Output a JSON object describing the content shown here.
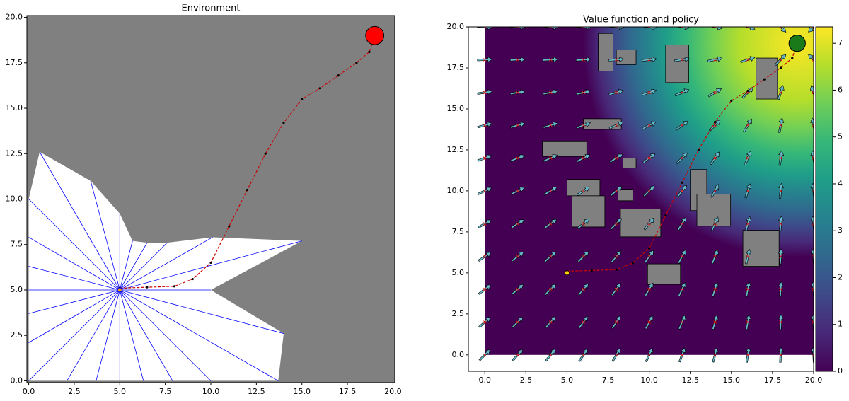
{
  "chart_data": [
    {
      "type": "trajectory",
      "title": "Environment",
      "xlim": [
        -0.1,
        20.1
      ],
      "ylim": [
        -0.1,
        20.1
      ],
      "xticks": [
        {
          "value": 0,
          "label": "0.0"
        },
        {
          "value": 2.5,
          "label": "2.5"
        },
        {
          "value": 5,
          "label": "5.0"
        },
        {
          "value": 7.5,
          "label": "7.5"
        },
        {
          "value": 10,
          "label": "10.0"
        },
        {
          "value": 12.5,
          "label": "12.5"
        },
        {
          "value": 15,
          "label": "15.0"
        },
        {
          "value": 17.5,
          "label": "17.5"
        },
        {
          "value": 20,
          "label": "20.0"
        }
      ],
      "yticks": [
        {
          "value": 0,
          "label": "0.0"
        },
        {
          "value": 2.5,
          "label": "2.5"
        },
        {
          "value": 5,
          "label": "5.0"
        },
        {
          "value": 7.5,
          "label": "7.5"
        },
        {
          "value": 10,
          "label": "10.0"
        },
        {
          "value": 12.5,
          "label": "12.5"
        },
        {
          "value": 15,
          "label": "15.0"
        },
        {
          "value": 17.5,
          "label": "17.5"
        },
        {
          "value": 20,
          "label": "20.0"
        }
      ],
      "background": "#808080",
      "free_color": "#ffffff",
      "ray_color": "#0000ff",
      "origin": {
        "x": 5,
        "y": 5,
        "color": "#ffa500"
      },
      "rays": {
        "x": [
          10,
          15,
          10.1,
          7.6,
          6.5,
          5.7,
          5,
          3.4,
          0.6,
          0,
          0,
          0,
          0,
          0,
          0,
          0,
          2.1,
          3.7,
          5,
          6.3,
          7.9,
          10,
          13.7,
          14
        ],
        "y": [
          5,
          7.7,
          7.9,
          7.6,
          7.6,
          7.7,
          9.2,
          11,
          12.6,
          10,
          7.9,
          6.3,
          5,
          3.7,
          2.1,
          0,
          0,
          0,
          0,
          0,
          0,
          0,
          0,
          2.6
        ]
      },
      "path": {
        "color": "#cc0000",
        "x": [
          5,
          6.5,
          8,
          9,
          10,
          11,
          12,
          13,
          14,
          15,
          16,
          17,
          18,
          18.7,
          19
        ],
        "y": [
          5.1,
          5.15,
          5.2,
          5.6,
          6.5,
          8.5,
          10.5,
          12.5,
          14.2,
          15.5,
          16.1,
          16.8,
          17.5,
          18.1,
          19
        ]
      },
      "goal": {
        "x": 19,
        "y": 19,
        "r": 0.5,
        "color": "#ff0000"
      }
    },
    {
      "type": "policy",
      "title": "Value function and policy",
      "xlim": [
        -1,
        20
      ],
      "ylim": [
        -1,
        20
      ],
      "xticks": [
        {
          "value": 0,
          "label": "0.0"
        },
        {
          "value": 2.5,
          "label": "2.5"
        },
        {
          "value": 5,
          "label": "5.0"
        },
        {
          "value": 7.5,
          "label": "7.5"
        },
        {
          "value": 10,
          "label": "10.0"
        },
        {
          "value": 12.5,
          "label": "12.5"
        },
        {
          "value": 15,
          "label": "15.0"
        },
        {
          "value": 17.5,
          "label": "17.5"
        },
        {
          "value": 20,
          "label": "20.0"
        }
      ],
      "yticks": [
        {
          "value": 0,
          "label": "0.0"
        },
        {
          "value": 2.5,
          "label": "2.5"
        },
        {
          "value": 5,
          "label": "5.0"
        },
        {
          "value": 7.5,
          "label": "7.5"
        },
        {
          "value": 10,
          "label": "10.0"
        },
        {
          "value": 12.5,
          "label": "12.5"
        },
        {
          "value": 15,
          "label": "15.0"
        },
        {
          "value": 17.5,
          "label": "17.5"
        },
        {
          "value": 20,
          "label": "20.0"
        }
      ],
      "clim": [
        0,
        7.35
      ],
      "cticks": [
        0,
        1,
        2,
        3,
        4,
        5,
        6,
        7
      ],
      "colors": [
        "#440154",
        "#482878",
        "#3e4989",
        "#31688e",
        "#26828e",
        "#1f9e89",
        "#35b779",
        "#6ece58",
        "#b5de2b",
        "#fde725"
      ],
      "obstacle_color": "#808080",
      "arrow_color": "#66b8c8",
      "obstacles": {
        "x": [
          6.9,
          8.0,
          11.0,
          16.5,
          6.0,
          3.5,
          8.4,
          12.5,
          5.0,
          5.3,
          8.1,
          8.25,
          12.9,
          15.7,
          9.9
        ],
        "y": [
          17.3,
          17.7,
          16.6,
          15.6,
          13.75,
          12.1,
          11.4,
          8.8,
          9.7,
          7.8,
          9.4,
          7.2,
          7.85,
          5.4,
          4.3
        ],
        "w": [
          0.9,
          1.2,
          1.4,
          1.3,
          2.3,
          2.7,
          0.8,
          1.0,
          2.0,
          2.0,
          0.9,
          2.45,
          2.05,
          2.2,
          2.0
        ],
        "h": [
          2.3,
          0.9,
          2.3,
          2.5,
          0.65,
          0.9,
          0.6,
          2.5,
          1.0,
          1.9,
          0.7,
          1.7,
          1.95,
          2.2,
          1.25
        ]
      },
      "policy": {
        "x": [
          0,
          2,
          4,
          6,
          8,
          10,
          12,
          14,
          16,
          18,
          20
        ],
        "y": [
          0,
          2,
          4,
          6,
          8,
          10,
          12,
          14,
          16,
          18,
          20
        ],
        "angles": [
          [
            45,
            48,
            52,
            56,
            60,
            65,
            70,
            75,
            81,
            87,
            93
          ],
          [
            42,
            45,
            49,
            53,
            57,
            62,
            68,
            74,
            80,
            87,
            93
          ],
          [
            38,
            41,
            45,
            49,
            54,
            59,
            65,
            72,
            79,
            86,
            94
          ],
          [
            34,
            37,
            41,
            45,
            50,
            55,
            62,
            69,
            77,
            86,
            94
          ],
          [
            30,
            33,
            36,
            40,
            45,
            51,
            58,
            66,
            75,
            85,
            96
          ],
          [
            25,
            27,
            31,
            34,
            39,
            45,
            52,
            61,
            72,
            84,
            96
          ],
          [
            20,
            22,
            24,
            27,
            32,
            38,
            45,
            55,
            67,
            82,
            98
          ],
          [
            15,
            16,
            17,
            20,
            23,
            27,
            35,
            45,
            59,
            79,
            101
          ],
          [
            9,
            10,
            11,
            13,
            15,
            18,
            23,
            31,
            45,
            72,
            108
          ],
          [
            3,
            3,
            3,
            4,
            5,
            6,
            8,
            11,
            18,
            45,
            135
          ],
          [
            -3,
            -3,
            -4,
            -4,
            -5,
            -6,
            -8,
            -11,
            -18,
            -45,
            -135
          ]
        ]
      },
      "path": {
        "color": "#cc0000",
        "x": [
          5,
          6.5,
          8,
          9,
          10,
          11,
          12,
          13,
          14,
          15,
          16,
          17,
          18,
          18.7,
          19
        ],
        "y": [
          5.1,
          5.15,
          5.2,
          5.6,
          6.5,
          8.5,
          10.5,
          12.5,
          14.2,
          15.5,
          16.1,
          16.8,
          17.5,
          18.1,
          19
        ]
      },
      "start": {
        "x": 5,
        "y": 5,
        "color": "#ffd700"
      },
      "goal": {
        "x": 19,
        "y": 19,
        "r": 0.5,
        "color": "#1a7a1a"
      }
    }
  ]
}
